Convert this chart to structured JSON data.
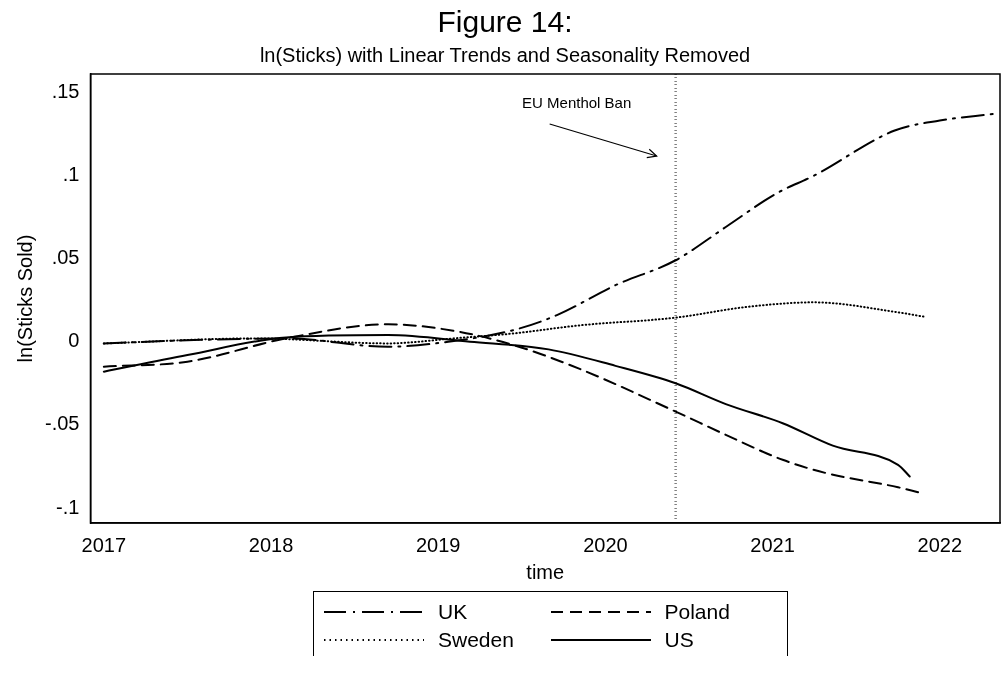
{
  "chart_data": {
    "type": "line",
    "title": "Figure 14:",
    "subtitle": "ln(Sticks) with Linear Trends and Seasonality Removed",
    "xlabel": "time",
    "ylabel": "ln(Sticks Sold)",
    "xlim": [
      2016.92,
      2022.36
    ],
    "xticks": [
      2017,
      2018,
      2019,
      2020,
      2021,
      2022
    ],
    "ylim": [
      -0.109,
      0.161
    ],
    "yticks": [
      {
        "value": -0.1,
        "label": "-.1"
      },
      {
        "value": -0.05,
        "label": "-.05"
      },
      {
        "value": 0,
        "label": "0"
      },
      {
        "value": 0.05,
        "label": ".05"
      },
      {
        "value": 0.1,
        "label": ".1"
      },
      {
        "value": 0.15,
        "label": ".15"
      }
    ],
    "legend": "bottom",
    "marker": "none",
    "ref_lines": [
      {
        "axis": "x",
        "value": 2020.42,
        "label": "EU Menthol Ban",
        "line_style": "dotted",
        "color": "#000000"
      }
    ],
    "series": [
      {
        "name": "UK",
        "color": "#000000",
        "line_style": "dashdot",
        "x": [
          2017,
          2017.54,
          2018.09,
          2018.7,
          2019.06,
          2019.45,
          2019.71,
          2020.06,
          2020.42,
          2020.72,
          2021.02,
          2021.25,
          2021.73,
          2022.0,
          2022.32
        ],
        "values": [
          -0.001,
          0.001,
          0.002,
          -0.003,
          0,
          0.007,
          0.016,
          0.034,
          0.049,
          0.069,
          0.089,
          0.1,
          0.127,
          0.133,
          0.137
        ]
      },
      {
        "name": "Poland",
        "color": "#000000",
        "line_style": "dashed",
        "x": [
          2017,
          2017.5,
          2018.09,
          2018.7,
          2019.09,
          2019.45,
          2019.85,
          2020.42,
          2020.72,
          2021.06,
          2021.32,
          2021.75,
          2021.87
        ],
        "values": [
          -0.015,
          -0.012,
          0.002,
          0.0105,
          0.0066,
          -0.002,
          -0.0165,
          -0.042,
          -0.056,
          -0.071,
          -0.079,
          -0.0875,
          -0.0905
        ]
      },
      {
        "name": "Sweden",
        "color": "#000000",
        "line_style": "dotted",
        "x": [
          2017,
          2017.91,
          2018.7,
          2019.09,
          2019.45,
          2019.85,
          2020.42,
          2020.85,
          2021.25,
          2021.73,
          2021.91
        ],
        "values": [
          -0.001,
          0.002,
          -0.001,
          0.002,
          0.005,
          0.0099,
          0.0145,
          0.021,
          0.0237,
          0.018,
          0.015
        ]
      },
      {
        "name": "US",
        "color": "#000000",
        "line_style": "solid",
        "x": [
          2017,
          2017.5,
          2018.09,
          2018.7,
          2019.19,
          2019.66,
          2020.06,
          2020.42,
          2020.72,
          2021.06,
          2021.36,
          2021.75,
          2021.82
        ],
        "values": [
          -0.018,
          -0.008,
          0.0026,
          0.004,
          0,
          -0.0046,
          -0.0145,
          -0.025,
          -0.0375,
          -0.049,
          -0.0625,
          -0.074,
          -0.081
        ]
      }
    ]
  }
}
